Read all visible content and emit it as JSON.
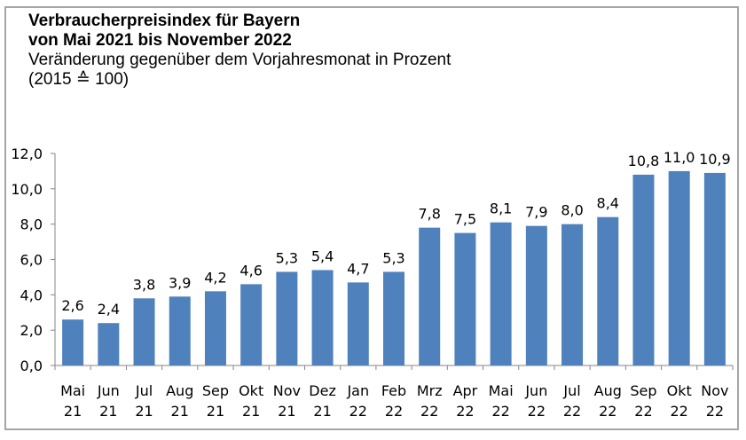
{
  "chart_data": {
    "type": "bar",
    "title": "Verbraucherpreisindex für Bayern",
    "title_line2": "von Mai 2021 bis November 2022",
    "subtitle": "Veränderung gegenüber dem Vorjahresmonat in Prozent",
    "subtitle_line2": "(2015 ≙ 100)",
    "xlabel": "",
    "ylabel": "",
    "ylim": [
      0,
      12
    ],
    "yticks": [
      "0,0",
      "2,0",
      "4,0",
      "6,0",
      "8,0",
      "10,0",
      "12,0"
    ],
    "grid": false,
    "legend": "none",
    "bar_color": "#4f81bd",
    "categories": [
      [
        "Mai",
        "21"
      ],
      [
        "Jun",
        "21"
      ],
      [
        "Jul",
        "21"
      ],
      [
        "Aug",
        "21"
      ],
      [
        "Sep",
        "21"
      ],
      [
        "Okt",
        "21"
      ],
      [
        "Nov",
        "21"
      ],
      [
        "Dez",
        "21"
      ],
      [
        "Jan",
        "22"
      ],
      [
        "Feb",
        "22"
      ],
      [
        "Mrz",
        "22"
      ],
      [
        "Apr",
        "22"
      ],
      [
        "Mai",
        "22"
      ],
      [
        "Jun",
        "22"
      ],
      [
        "Jul",
        "22"
      ],
      [
        "Aug",
        "22"
      ],
      [
        "Sep",
        "22"
      ],
      [
        "Okt",
        "22"
      ],
      [
        "Nov",
        "22"
      ]
    ],
    "values": [
      2.6,
      2.4,
      3.8,
      3.9,
      4.2,
      4.6,
      5.3,
      5.4,
      4.7,
      5.3,
      7.8,
      7.5,
      8.1,
      7.9,
      8.0,
      8.4,
      10.8,
      11.0,
      10.9
    ],
    "data_labels": [
      "2,6",
      "2,4",
      "3,8",
      "3,9",
      "4,2",
      "4,6",
      "5,3",
      "5,4",
      "4,7",
      "5,3",
      "7,8",
      "7,5",
      "8,1",
      "7,9",
      "8,0",
      "8,4",
      "10,8",
      "11,0",
      "10,9"
    ]
  }
}
